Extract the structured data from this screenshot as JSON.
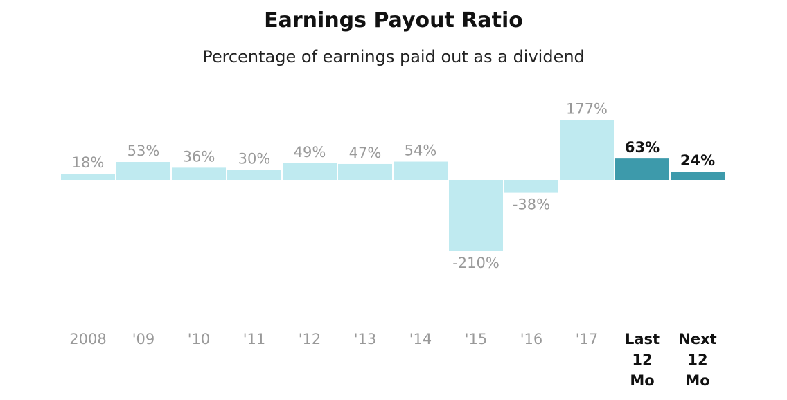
{
  "chart_data": {
    "type": "bar",
    "title": "Earnings Payout Ratio",
    "subtitle": "Percentage of earnings paid out as a dividend",
    "categories": [
      "2008",
      "'09",
      "'10",
      "'11",
      "'12",
      "'13",
      "'14",
      "'15",
      "'16",
      "'17",
      "Last 12 Mo",
      "Next 12 Mo"
    ],
    "values": [
      18,
      53,
      36,
      30,
      49,
      47,
      54,
      -210,
      -38,
      177,
      63,
      24
    ],
    "value_labels": [
      "18%",
      "53%",
      "36%",
      "30%",
      "49%",
      "47%",
      "54%",
      "-210%",
      "-38%",
      "177%",
      "63%",
      "24%"
    ],
    "highlighted": [
      false,
      false,
      false,
      false,
      false,
      false,
      false,
      false,
      false,
      false,
      true,
      true
    ],
    "colors": {
      "normal_bar": "#bfeaf0",
      "highlight_bar": "#3d9aab",
      "normal_text": "#999999",
      "highlight_text": "#111111"
    },
    "xlabel": "",
    "ylabel": "",
    "grid": false,
    "legend": "none"
  }
}
